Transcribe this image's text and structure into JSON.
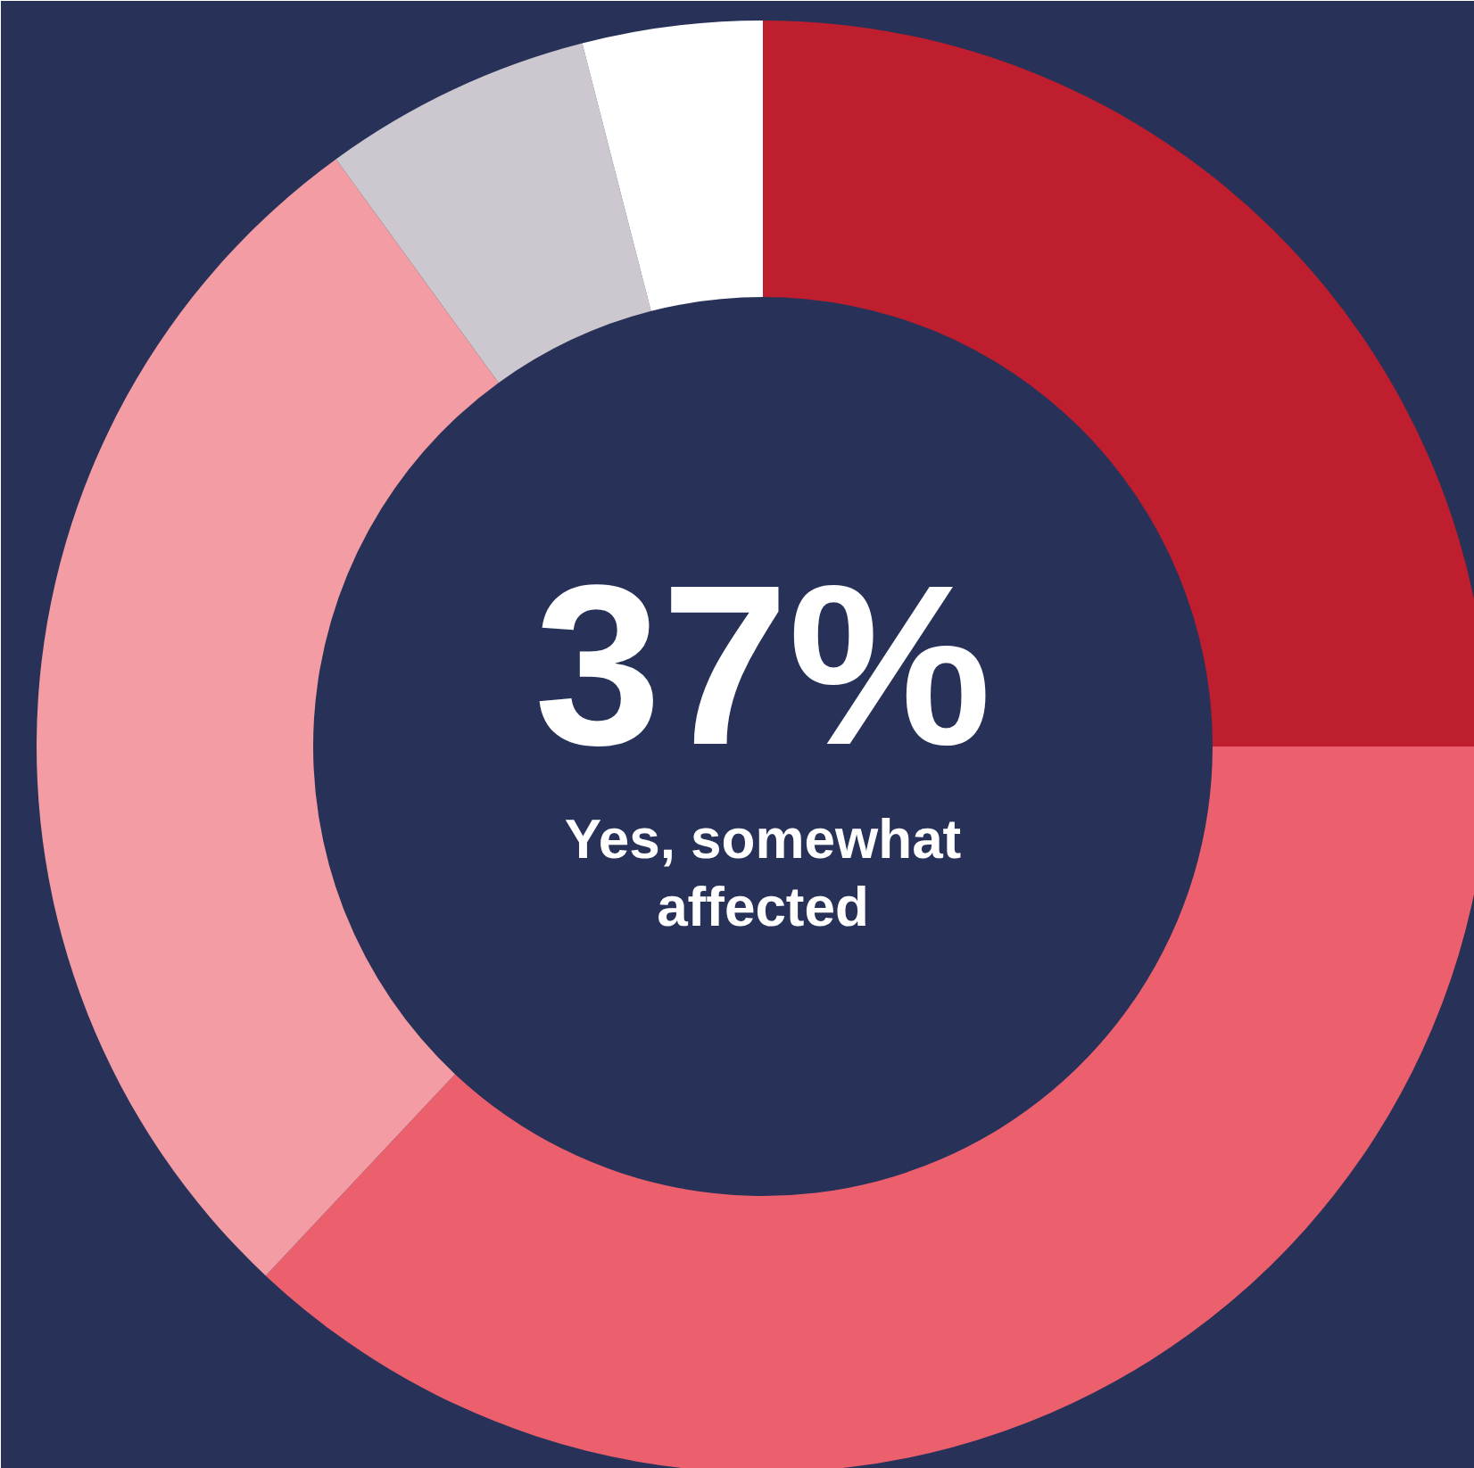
{
  "chart_data": {
    "type": "donut",
    "categories": [
      null,
      null,
      null,
      null,
      null
    ],
    "values": [
      25,
      37,
      28,
      6,
      4
    ],
    "colors": [
      "#be1e2d",
      "#ec5f6d",
      "#f39ca3",
      "#cdc8cf",
      "#ffffff"
    ],
    "annotations": [
      "37%",
      "Yes, somewhat affected"
    ]
  }
}
